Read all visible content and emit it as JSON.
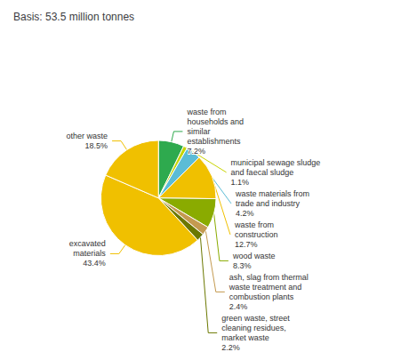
{
  "chart_data": {
    "type": "pie",
    "title": "Basis: 53.5 million tonnes",
    "categories": [
      "waste from\nhouseholds and\nsimilar\nestablishments\n7.2%",
      "municipal sewage sludge\nand faecal sludge\n1.1%",
      "waste materials from\ntrade and industry\n4.2%",
      "waste from\nconstruction\n12.7%",
      "wood waste\n8.3%",
      "ash, slag from thermal\nwaste treatment and\ncombustion plants\n2.4%",
      "green waste, street\ncleaning residues,\nmarket waste\n2.2%",
      "excavated\nmaterials\n43.4%",
      "other waste\n18.5%"
    ],
    "values": [
      7.2,
      1.1,
      4.2,
      12.7,
      8.3,
      2.4,
      2.2,
      43.4,
      18.5
    ],
    "colors": [
      "#2eaa4e",
      "#c8d400",
      "#5bbcd6",
      "#f0c000",
      "#8aab00",
      "#c49a50",
      "#6b7800",
      "#f0c000",
      "#f0c000"
    ]
  }
}
